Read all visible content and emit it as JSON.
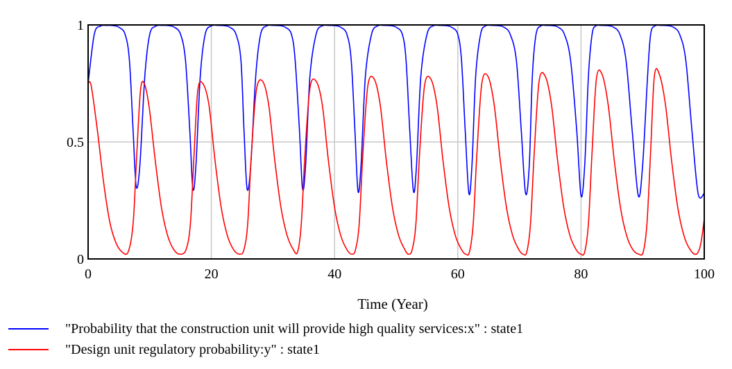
{
  "chart_data": {
    "type": "line",
    "xlabel": "Time (Year)",
    "ylabel": "",
    "xlim": [
      0,
      100
    ],
    "ylim": [
      0,
      1
    ],
    "xticks": [
      "0",
      "20",
      "40",
      "60",
      "80",
      "100"
    ],
    "yticks": [
      "0",
      "0.5",
      "1"
    ],
    "grid": true,
    "legend_position": "bottom",
    "series": [
      {
        "name": "\"Probability that the construction unit will provide high quality services:x\" : state1",
        "color": "#0000ff",
        "x": [
          0,
          1,
          2,
          3,
          4,
          5,
          6,
          6.7,
          7.3,
          7.8,
          8.4,
          9.2,
          10,
          11,
          12,
          13,
          14,
          15,
          15.8,
          16.5,
          17,
          17.5,
          18.2,
          19,
          20,
          21,
          22,
          23,
          24,
          24.8,
          25.3,
          25.8,
          26.4,
          27.2,
          28,
          29,
          30,
          31,
          32,
          33,
          33.6,
          34.3,
          34.8,
          35.3,
          36,
          37,
          38,
          39,
          40,
          41,
          42,
          42.7,
          43.3,
          43.8,
          44.3,
          45,
          46,
          47,
          48,
          49,
          50,
          51,
          51.6,
          52.2,
          52.8,
          53.3,
          54,
          55,
          56,
          57,
          58,
          59,
          60,
          60.6,
          61.2,
          61.8,
          62.3,
          62.9,
          63.7,
          64.5,
          65.5,
          66.5,
          67.5,
          68.5,
          69.5,
          70.3,
          71,
          71.6,
          72.1,
          72.7,
          73.5,
          74.3,
          75.3,
          76.3,
          77.3,
          78.3,
          79.3,
          80,
          80.6,
          81.2,
          81.8,
          82.4,
          83.3,
          84.3,
          85.3,
          86.3,
          87.3,
          88.3,
          89.3,
          90,
          90.8,
          91.3,
          92,
          93,
          94,
          95,
          96,
          97,
          98,
          99,
          100
        ],
        "y": [
          0.75,
          0.96,
          0.995,
          0.998,
          0.997,
          0.99,
          0.96,
          0.85,
          0.55,
          0.31,
          0.4,
          0.78,
          0.96,
          0.995,
          0.998,
          0.997,
          0.99,
          0.96,
          0.85,
          0.55,
          0.3,
          0.4,
          0.78,
          0.96,
          0.996,
          0.998,
          0.997,
          0.99,
          0.96,
          0.85,
          0.55,
          0.3,
          0.4,
          0.78,
          0.96,
          0.996,
          0.998,
          0.997,
          0.99,
          0.96,
          0.85,
          0.55,
          0.3,
          0.4,
          0.78,
          0.96,
          0.996,
          0.998,
          0.997,
          0.99,
          0.96,
          0.85,
          0.55,
          0.29,
          0.4,
          0.78,
          0.96,
          0.996,
          0.998,
          0.997,
          0.99,
          0.96,
          0.85,
          0.55,
          0.29,
          0.4,
          0.78,
          0.96,
          0.996,
          0.998,
          0.997,
          0.99,
          0.96,
          0.85,
          0.55,
          0.28,
          0.4,
          0.78,
          0.96,
          0.996,
          0.998,
          0.997,
          0.99,
          0.96,
          0.85,
          0.55,
          0.28,
          0.4,
          0.78,
          0.96,
          0.996,
          0.998,
          0.997,
          0.99,
          0.96,
          0.85,
          0.55,
          0.27,
          0.4,
          0.78,
          0.96,
          0.996,
          0.998,
          0.997,
          0.99,
          0.96,
          0.85,
          0.55,
          0.27,
          0.4,
          0.78,
          0.96,
          0.996,
          0.998,
          0.997,
          0.99,
          0.96,
          0.85,
          0.55,
          0.28,
          0.28
        ]
      },
      {
        "name": "\"Design unit regulatory probability:y\" : state1",
        "color": "#ff0000",
        "x": [
          0,
          0.5,
          1.5,
          2.5,
          3.5,
          4.5,
          5.5,
          6.5,
          7.3,
          7.9,
          8.5,
          9.1,
          9.9,
          10.9,
          11.9,
          12.9,
          13.9,
          14.9,
          15.9,
          16.6,
          17.2,
          17.8,
          18.6,
          19.6,
          20.6,
          21.6,
          22.6,
          23.6,
          24.6,
          25.3,
          25.9,
          26.5,
          27.3,
          28.3,
          29.3,
          30.3,
          31.3,
          32.3,
          33.3,
          34,
          34.6,
          35.2,
          36,
          37,
          38,
          39,
          40,
          41,
          42,
          42.8,
          43.4,
          44,
          44.6,
          45.4,
          46.4,
          47.4,
          48.4,
          49.4,
          50.4,
          51.4,
          52,
          52.6,
          53.2,
          53.8,
          54.6,
          55.6,
          56.6,
          57.6,
          58.6,
          59.6,
          60.6,
          61.3,
          61.9,
          62.5,
          63.1,
          63.9,
          64.9,
          65.9,
          66.9,
          67.9,
          68.9,
          69.9,
          70.6,
          71.2,
          71.8,
          72.4,
          73.2,
          74.2,
          75.2,
          76.2,
          77.2,
          78.2,
          79.2,
          80,
          80.6,
          81.2,
          81.8,
          82.5,
          83.4,
          84.4,
          85.4,
          86.4,
          87.4,
          88.4,
          89.4,
          90.1,
          90.7,
          91.3,
          91.9,
          92.7,
          93.7,
          94.7,
          95.7,
          96.7,
          97.7,
          98.7,
          99.4,
          100
        ],
        "y": [
          0.75,
          0.74,
          0.55,
          0.33,
          0.16,
          0.07,
          0.03,
          0.03,
          0.15,
          0.45,
          0.72,
          0.75,
          0.65,
          0.42,
          0.22,
          0.1,
          0.04,
          0.02,
          0.04,
          0.15,
          0.45,
          0.72,
          0.75,
          0.66,
          0.42,
          0.22,
          0.1,
          0.04,
          0.02,
          0.04,
          0.15,
          0.45,
          0.72,
          0.76,
          0.66,
          0.42,
          0.22,
          0.1,
          0.04,
          0.03,
          0.15,
          0.45,
          0.73,
          0.76,
          0.66,
          0.42,
          0.22,
          0.1,
          0.04,
          0.02,
          0.04,
          0.15,
          0.45,
          0.74,
          0.77,
          0.66,
          0.42,
          0.22,
          0.1,
          0.04,
          0.02,
          0.04,
          0.15,
          0.45,
          0.74,
          0.77,
          0.66,
          0.42,
          0.22,
          0.1,
          0.04,
          0.02,
          0.03,
          0.15,
          0.45,
          0.75,
          0.78,
          0.66,
          0.42,
          0.22,
          0.1,
          0.04,
          0.02,
          0.03,
          0.15,
          0.45,
          0.76,
          0.78,
          0.66,
          0.42,
          0.22,
          0.1,
          0.04,
          0.02,
          0.03,
          0.15,
          0.46,
          0.77,
          0.79,
          0.66,
          0.42,
          0.22,
          0.1,
          0.04,
          0.02,
          0.03,
          0.15,
          0.46,
          0.78,
          0.79,
          0.66,
          0.42,
          0.22,
          0.1,
          0.04,
          0.02,
          0.06,
          0.17
        ]
      }
    ]
  }
}
